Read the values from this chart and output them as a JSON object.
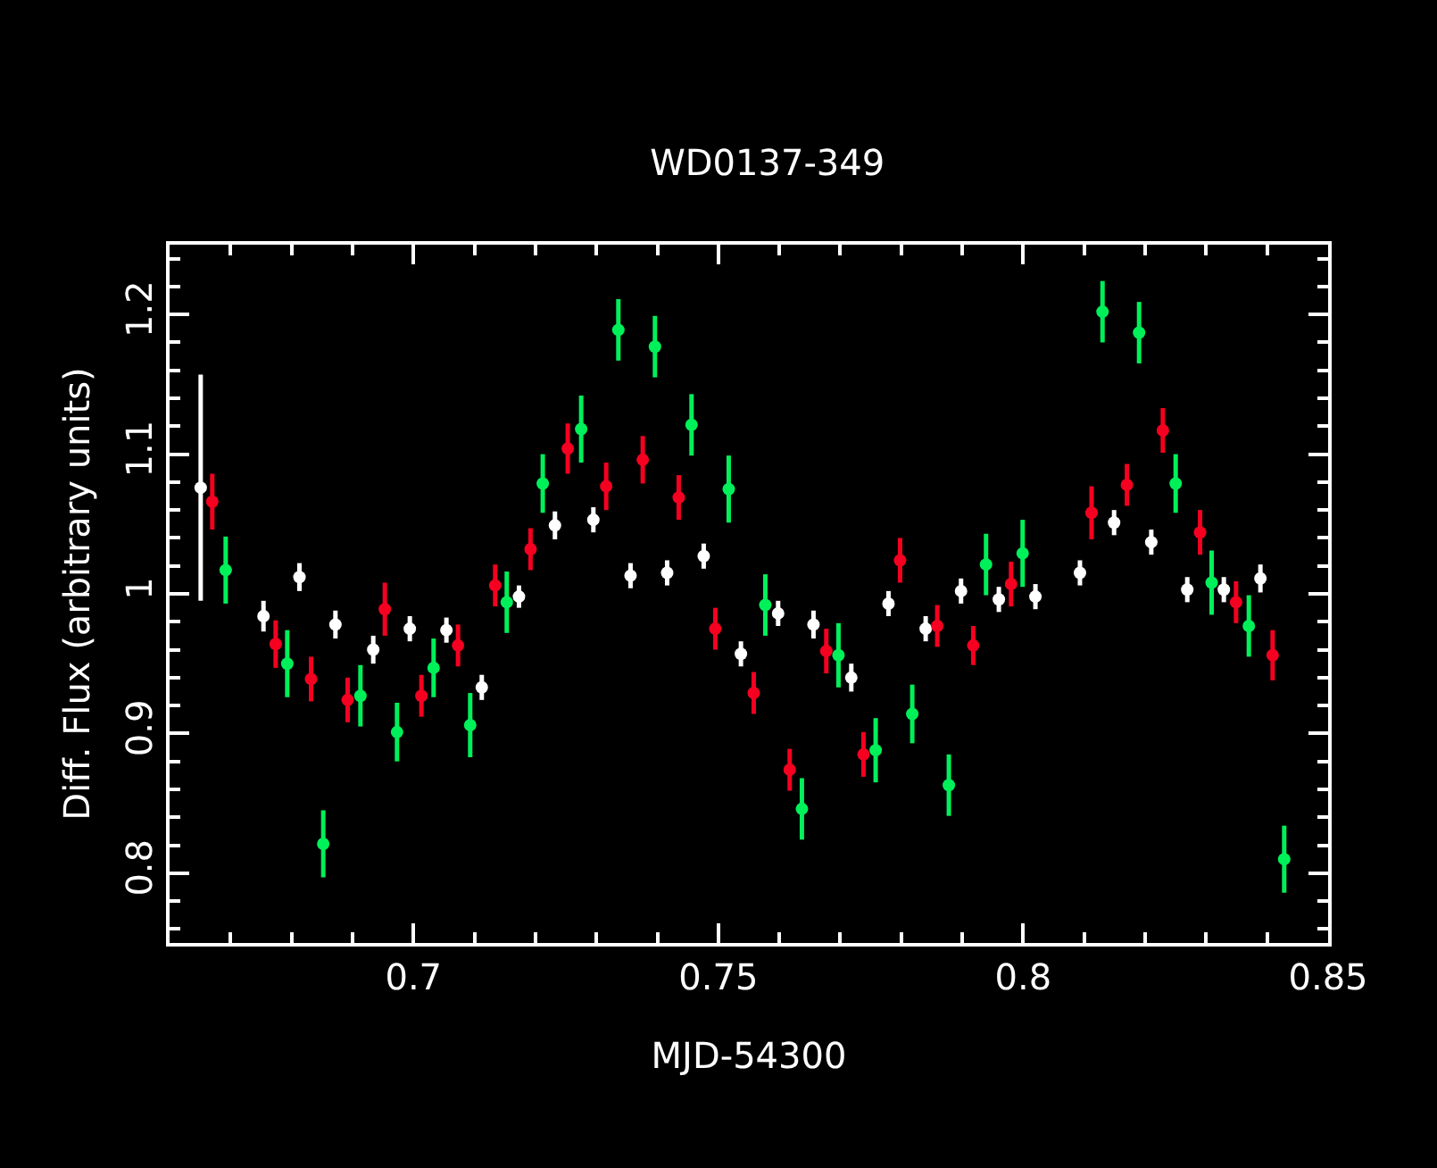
{
  "chart_data": {
    "type": "scatter",
    "title": "WD0137-349",
    "xlabel": "MJD-54300",
    "ylabel": "Diff. Flux (arbitrary units)",
    "marker": "circle",
    "xlim": [
      0.66,
      0.85
    ],
    "xticks": [
      {
        "value": 0.67,
        "label": null
      },
      {
        "value": 0.68,
        "label": null
      },
      {
        "value": 0.69,
        "label": null
      },
      {
        "value": 0.7,
        "label": "0.7"
      },
      {
        "value": 0.71,
        "label": null
      },
      {
        "value": 0.72,
        "label": null
      },
      {
        "value": 0.73,
        "label": null
      },
      {
        "value": 0.74,
        "label": null
      },
      {
        "value": 0.75,
        "label": "0.75"
      },
      {
        "value": 0.76,
        "label": null
      },
      {
        "value": 0.77,
        "label": null
      },
      {
        "value": 0.78,
        "label": null
      },
      {
        "value": 0.79,
        "label": null
      },
      {
        "value": 0.8,
        "label": "0.8"
      },
      {
        "value": 0.81,
        "label": null
      },
      {
        "value": 0.82,
        "label": null
      },
      {
        "value": 0.83,
        "label": null
      },
      {
        "value": 0.84,
        "label": null
      },
      {
        "value": 0.85,
        "label": "0.85"
      }
    ],
    "ylim": [
      0.75,
      1.25
    ],
    "yticks": [
      {
        "value": 0.76,
        "label": null
      },
      {
        "value": 0.78,
        "label": null
      },
      {
        "value": 0.8,
        "label": "0.8"
      },
      {
        "value": 0.82,
        "label": null
      },
      {
        "value": 0.84,
        "label": null
      },
      {
        "value": 0.86,
        "label": null
      },
      {
        "value": 0.88,
        "label": null
      },
      {
        "value": 0.9,
        "label": "0.9"
      },
      {
        "value": 0.92,
        "label": null
      },
      {
        "value": 0.94,
        "label": null
      },
      {
        "value": 0.96,
        "label": null
      },
      {
        "value": 0.98,
        "label": null
      },
      {
        "value": 1,
        "label": "1"
      },
      {
        "value": 1.02,
        "label": null
      },
      {
        "value": 1.04,
        "label": null
      },
      {
        "value": 1.06,
        "label": null
      },
      {
        "value": 1.08,
        "label": null
      },
      {
        "value": 1.1,
        "label": "1.1"
      },
      {
        "value": 1.12,
        "label": null
      },
      {
        "value": 1.14,
        "label": null
      },
      {
        "value": 1.16,
        "label": null
      },
      {
        "value": 1.18,
        "label": null
      },
      {
        "value": 1.2,
        "label": "1.2"
      },
      {
        "value": 1.22,
        "label": null
      },
      {
        "value": 1.24,
        "label": null
      }
    ],
    "series": [
      {
        "color": "#ffffff",
        "x": [
          0.6651,
          0.6754,
          0.6813,
          0.6872,
          0.6934,
          0.6994,
          0.7054,
          0.7112,
          0.7173,
          0.7232,
          0.7295,
          0.7356,
          0.7416,
          0.7476,
          0.7537,
          0.7598,
          0.7656,
          0.7718,
          0.7779,
          0.784,
          0.7898,
          0.796,
          0.802,
          0.8093,
          0.8149,
          0.821,
          0.8269,
          0.8329,
          0.8389
        ],
        "values": [
          1.076,
          0.984,
          1.012,
          0.978,
          0.96,
          0.975,
          0.974,
          0.933,
          0.998,
          1.049,
          1.053,
          1.013,
          1.015,
          1.027,
          0.957,
          0.986,
          0.978,
          0.94,
          0.993,
          0.975,
          1.002,
          0.996,
          0.998,
          1.015,
          1.051,
          1.037,
          1.003,
          1.003,
          1.011
        ],
        "errors": [
          0.081,
          0.011,
          0.01,
          0.01,
          0.01,
          0.009,
          0.009,
          0.009,
          0.008,
          0.01,
          0.009,
          0.009,
          0.009,
          0.009,
          0.009,
          0.009,
          0.01,
          0.01,
          0.009,
          0.009,
          0.009,
          0.009,
          0.009,
          0.009,
          0.009,
          0.009,
          0.009,
          0.009,
          0.01
        ]
      },
      {
        "color": "#f50020",
        "x": [
          0.667,
          0.6774,
          0.6832,
          0.6892,
          0.6953,
          0.7013,
          0.7073,
          0.7134,
          0.7192,
          0.7253,
          0.7316,
          0.7376,
          0.7435,
          0.7495,
          0.7558,
          0.7617,
          0.7677,
          0.7738,
          0.7798,
          0.7859,
          0.7918,
          0.798,
          0.8112,
          0.817,
          0.8229,
          0.829,
          0.8349,
          0.8409
        ],
        "values": [
          1.066,
          0.964,
          0.939,
          0.924,
          0.989,
          0.927,
          0.963,
          1.006,
          1.032,
          1.104,
          1.077,
          1.096,
          1.069,
          0.975,
          0.929,
          0.874,
          0.959,
          0.885,
          1.024,
          0.977,
          0.963,
          1.007,
          1.058,
          1.078,
          1.117,
          1.044,
          0.994,
          0.956
        ],
        "errors": [
          0.02,
          0.017,
          0.016,
          0.016,
          0.019,
          0.015,
          0.015,
          0.015,
          0.015,
          0.018,
          0.017,
          0.017,
          0.016,
          0.015,
          0.015,
          0.015,
          0.016,
          0.016,
          0.016,
          0.015,
          0.014,
          0.016,
          0.019,
          0.015,
          0.016,
          0.016,
          0.015,
          0.018
        ]
      },
      {
        "color": "#00f05a",
        "x": [
          0.6692,
          0.6793,
          0.6852,
          0.6913,
          0.6973,
          0.7033,
          0.7093,
          0.7153,
          0.7212,
          0.7275,
          0.7336,
          0.7396,
          0.7456,
          0.7517,
          0.7577,
          0.7637,
          0.7697,
          0.7758,
          0.7818,
          0.7878,
          0.7939,
          0.7999,
          0.813,
          0.819,
          0.825,
          0.8309,
          0.837,
          0.8428
        ],
        "values": [
          1.017,
          0.95,
          0.821,
          0.927,
          0.901,
          0.947,
          0.906,
          0.994,
          1.079,
          1.118,
          1.189,
          1.177,
          1.121,
          1.075,
          0.992,
          0.846,
          0.956,
          0.888,
          0.914,
          0.863,
          1.021,
          1.029,
          1.202,
          1.187,
          1.079,
          1.008,
          0.977,
          0.81
        ],
        "errors": [
          0.024,
          0.024,
          0.024,
          0.022,
          0.021,
          0.021,
          0.023,
          0.022,
          0.021,
          0.024,
          0.022,
          0.022,
          0.022,
          0.024,
          0.022,
          0.022,
          0.023,
          0.023,
          0.021,
          0.022,
          0.022,
          0.024,
          0.022,
          0.022,
          0.021,
          0.023,
          0.022,
          0.024
        ]
      }
    ]
  }
}
